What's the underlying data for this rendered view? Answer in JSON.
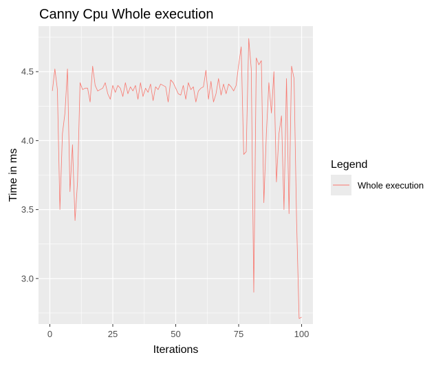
{
  "chart_data": {
    "type": "line",
    "title": "Canny Cpu Whole execution",
    "xlabel": "Iterations",
    "ylabel": "Time in ms",
    "xlim": [
      -4.5,
      104.5
    ],
    "ylim": [
      2.67,
      4.83
    ],
    "x_ticks": [
      0,
      25,
      50,
      75,
      100
    ],
    "y_ticks": [
      3.0,
      3.5,
      4.0,
      4.5
    ],
    "x_tick_labels": [
      "0",
      "25",
      "50",
      "75",
      "100"
    ],
    "y_tick_labels": [
      "3.0",
      "3.5",
      "4.0",
      "4.5"
    ],
    "grid": true,
    "panel_background": "#ebebeb",
    "grid_color": "#ffffff",
    "legend": {
      "title": "Legend",
      "position": "right",
      "entries": [
        {
          "label": "Whole execution",
          "color": "#f8766d"
        }
      ]
    },
    "series": [
      {
        "name": "Whole execution",
        "color": "#f8766d",
        "x": [
          1,
          2,
          3,
          4,
          5,
          6,
          7,
          8,
          9,
          10,
          11,
          12,
          13,
          14,
          15,
          16,
          17,
          18,
          19,
          20,
          21,
          22,
          23,
          24,
          25,
          26,
          27,
          28,
          29,
          30,
          31,
          32,
          33,
          34,
          35,
          36,
          37,
          38,
          39,
          40,
          41,
          42,
          43,
          44,
          45,
          46,
          47,
          48,
          49,
          50,
          51,
          52,
          53,
          54,
          55,
          56,
          57,
          58,
          59,
          60,
          61,
          62,
          63,
          64,
          65,
          66,
          67,
          68,
          69,
          70,
          71,
          72,
          73,
          74,
          75,
          76,
          77,
          78,
          79,
          80,
          81,
          82,
          83,
          84,
          85,
          86,
          87,
          88,
          89,
          90,
          91,
          92,
          93,
          94,
          95,
          96,
          97,
          98,
          99,
          100
        ],
        "values": [
          4.36,
          4.52,
          4.37,
          3.5,
          4.05,
          4.2,
          4.52,
          3.63,
          3.97,
          3.42,
          3.7,
          4.42,
          4.37,
          4.38,
          4.38,
          4.28,
          4.54,
          4.4,
          4.36,
          4.37,
          4.38,
          4.42,
          4.34,
          4.3,
          4.4,
          4.35,
          4.4,
          4.38,
          4.32,
          4.42,
          4.34,
          4.39,
          4.36,
          4.4,
          4.3,
          4.42,
          4.32,
          4.38,
          4.35,
          4.41,
          4.29,
          4.39,
          4.37,
          4.41,
          4.4,
          4.39,
          4.28,
          4.44,
          4.42,
          4.38,
          4.34,
          4.33,
          4.4,
          4.3,
          4.42,
          4.37,
          4.39,
          4.28,
          4.36,
          4.38,
          4.39,
          4.51,
          4.3,
          4.43,
          4.28,
          4.34,
          4.45,
          4.33,
          4.41,
          4.34,
          4.41,
          4.39,
          4.36,
          4.4,
          4.55,
          4.68,
          3.9,
          3.92,
          4.74,
          4.52,
          2.9,
          4.6,
          4.55,
          4.58,
          3.55,
          4.05,
          4.42,
          4.2,
          4.5,
          3.7,
          4.05,
          4.18,
          3.5,
          4.45,
          3.47,
          4.54,
          4.45,
          3.42,
          2.71,
          2.72
        ]
      }
    ]
  }
}
